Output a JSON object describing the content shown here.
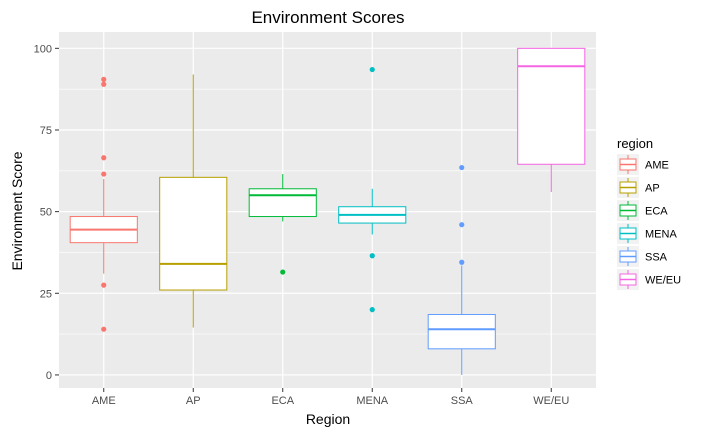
{
  "chart_data": {
    "type": "boxplot",
    "title": "Environment Scores",
    "xlabel": "Region",
    "ylabel": "Environment Score",
    "ylim": [
      -4,
      105
    ],
    "y_ticks": [
      0,
      25,
      50,
      75,
      100
    ],
    "grid": true,
    "legend": {
      "title": "region",
      "position": "right"
    },
    "categories": [
      "AME",
      "AP",
      "ECA",
      "MENA",
      "SSA",
      "WE/EU"
    ],
    "colors": [
      "#F8766D",
      "#B79F00",
      "#00BA38",
      "#00BFC4",
      "#619CFF",
      "#F564E3"
    ],
    "boxes": [
      {
        "name": "AME",
        "q1": 40.5,
        "median": 44.5,
        "q3": 48.5,
        "whisker_low": 31,
        "whisker_high": 60,
        "outliers": [
          90.5,
          89,
          66.5,
          61.5,
          27.5,
          14
        ]
      },
      {
        "name": "AP",
        "q1": 26,
        "median": 34,
        "q3": 60.5,
        "whisker_low": 14.5,
        "whisker_high": 92,
        "outliers": []
      },
      {
        "name": "ECA",
        "q1": 48.5,
        "median": 55,
        "q3": 57,
        "whisker_low": 47,
        "whisker_high": 61.5,
        "outliers": [
          31.5
        ]
      },
      {
        "name": "MENA",
        "q1": 46.5,
        "median": 49,
        "q3": 51.5,
        "whisker_low": 43,
        "whisker_high": 57,
        "outliers": [
          93.5,
          36.5,
          20
        ]
      },
      {
        "name": "SSA",
        "q1": 8,
        "median": 14,
        "q3": 18.5,
        "whisker_low": 0,
        "whisker_high": 33.5,
        "outliers": [
          63.5,
          46,
          34.5
        ]
      },
      {
        "name": "WE/EU",
        "q1": 64.5,
        "median": 94.5,
        "q3": 100,
        "whisker_low": 56,
        "whisker_high": 100,
        "outliers": []
      }
    ]
  }
}
